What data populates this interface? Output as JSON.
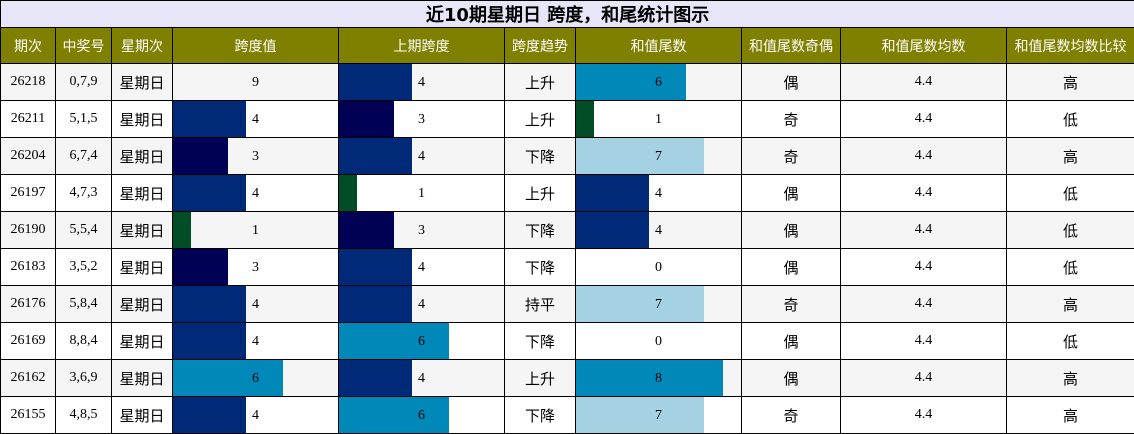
{
  "title": "近10期星期日 跨度，和尾统计图示",
  "headers": [
    "期次",
    "中奖号",
    "星期次",
    "跨度值",
    "上期跨度",
    "跨度趋势",
    "和值尾数",
    "和值尾数奇偶",
    "和值尾数均数",
    "和值尾数均数比较"
  ],
  "bar_max": 9,
  "colors": {
    "title_bg": "#e6e6f8",
    "header_bg": "#808000",
    "v1": "#004d26",
    "v3": "#000055",
    "v4": "#002a77",
    "v6": "#0088b8",
    "v7": "#a5d2e2"
  },
  "rows": [
    {
      "period": "26218",
      "numbers": "0,7,9",
      "weekday": "星期日",
      "span": "9",
      "prev_span": "4",
      "trend": "上升",
      "tail": "6",
      "parity": "偶",
      "avg": "4.4",
      "compare": "高"
    },
    {
      "period": "26211",
      "numbers": "5,1,5",
      "weekday": "星期日",
      "span": "4",
      "prev_span": "3",
      "trend": "上升",
      "tail": "1",
      "parity": "奇",
      "avg": "4.4",
      "compare": "低"
    },
    {
      "period": "26204",
      "numbers": "6,7,4",
      "weekday": "星期日",
      "span": "3",
      "prev_span": "4",
      "trend": "下降",
      "tail": "7",
      "parity": "奇",
      "avg": "4.4",
      "compare": "高"
    },
    {
      "period": "26197",
      "numbers": "4,7,3",
      "weekday": "星期日",
      "span": "4",
      "prev_span": "1",
      "trend": "上升",
      "tail": "4",
      "parity": "偶",
      "avg": "4.4",
      "compare": "低"
    },
    {
      "period": "26190",
      "numbers": "5,5,4",
      "weekday": "星期日",
      "span": "1",
      "prev_span": "3",
      "trend": "下降",
      "tail": "4",
      "parity": "偶",
      "avg": "4.4",
      "compare": "低"
    },
    {
      "period": "26183",
      "numbers": "3,5,2",
      "weekday": "星期日",
      "span": "3",
      "prev_span": "4",
      "trend": "下降",
      "tail": "0",
      "parity": "偶",
      "avg": "4.4",
      "compare": "低"
    },
    {
      "period": "26176",
      "numbers": "5,8,4",
      "weekday": "星期日",
      "span": "4",
      "prev_span": "4",
      "trend": "持平",
      "tail": "7",
      "parity": "奇",
      "avg": "4.4",
      "compare": "高"
    },
    {
      "period": "26169",
      "numbers": "8,8,4",
      "weekday": "星期日",
      "span": "4",
      "prev_span": "6",
      "trend": "下降",
      "tail": "0",
      "parity": "偶",
      "avg": "4.4",
      "compare": "低"
    },
    {
      "period": "26162",
      "numbers": "3,6,9",
      "weekday": "星期日",
      "span": "6",
      "prev_span": "4",
      "trend": "上升",
      "tail": "8",
      "parity": "偶",
      "avg": "4.4",
      "compare": "高"
    },
    {
      "period": "26155",
      "numbers": "4,8,5",
      "weekday": "星期日",
      "span": "4",
      "prev_span": "6",
      "trend": "下降",
      "tail": "7",
      "parity": "奇",
      "avg": "4.4",
      "compare": "高"
    }
  ]
}
